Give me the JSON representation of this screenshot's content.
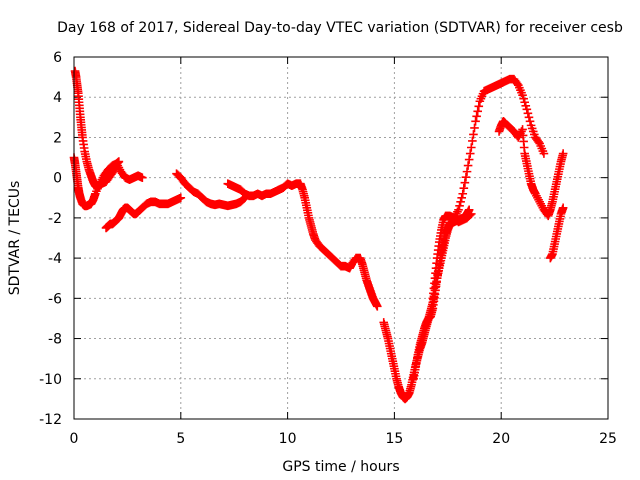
{
  "chart_data": {
    "type": "scatter",
    "title": "Day 168 of 2017, Sidereal Day-to-day VTEC variation (SDTVAR) for receiver cesb",
    "xlabel": "GPS time / hours",
    "ylabel": "SDTVAR / TECUs",
    "xlim": [
      0,
      25
    ],
    "ylim": [
      -12,
      6
    ],
    "xticks": [
      0,
      5,
      10,
      15,
      20,
      25
    ],
    "yticks": [
      -12,
      -10,
      -8,
      -6,
      -4,
      -2,
      0,
      2,
      4,
      6
    ],
    "grid": true,
    "marker": "+",
    "color": "#ff0000",
    "series": [
      {
        "x": [
          0.0,
          0.05,
          0.1,
          0.15,
          0.2,
          0.25,
          0.3,
          0.4,
          0.5,
          0.6,
          0.7,
          0.8,
          0.9,
          1.0,
          1.2,
          1.4,
          1.6,
          1.8,
          2.0,
          2.2,
          2.4,
          2.6,
          2.8,
          3.0,
          3.2
        ],
        "y": [
          1.0,
          0.7,
          0.3,
          -0.1,
          -0.5,
          -0.8,
          -1.0,
          -1.3,
          -1.4,
          -1.4,
          -1.35,
          -1.3,
          -1.1,
          -0.8,
          -0.3,
          0.1,
          0.4,
          0.6,
          0.7,
          0.3,
          0.0,
          -0.1,
          0.0,
          0.1,
          0.0
        ]
      },
      {
        "x": [
          0.05,
          0.1,
          0.15,
          0.2,
          0.25,
          0.3,
          0.35,
          0.4,
          0.5,
          0.6,
          0.7,
          0.8,
          0.9,
          1.0,
          1.1,
          1.2,
          1.3,
          1.5,
          1.7,
          1.9,
          2.0,
          2.1
        ],
        "y": [
          5.3,
          5.0,
          4.6,
          4.2,
          3.6,
          3.0,
          2.5,
          2.0,
          1.3,
          0.8,
          0.4,
          0.1,
          -0.2,
          -0.4,
          -0.5,
          -0.4,
          -0.3,
          -0.2,
          0.1,
          0.4,
          0.7,
          0.8
        ]
      },
      {
        "x": [
          1.5,
          1.6,
          1.7,
          1.8,
          1.9,
          2.0,
          2.1,
          2.2,
          2.3,
          2.4,
          2.5,
          2.6,
          2.7,
          2.8,
          2.9,
          3.0,
          3.2,
          3.4,
          3.6,
          3.8,
          4.0,
          4.2,
          4.4,
          4.6,
          4.8,
          5.0
        ],
        "y": [
          -2.5,
          -2.4,
          -2.3,
          -2.3,
          -2.2,
          -2.1,
          -2.0,
          -1.8,
          -1.6,
          -1.5,
          -1.5,
          -1.6,
          -1.7,
          -1.8,
          -1.8,
          -1.7,
          -1.5,
          -1.3,
          -1.2,
          -1.2,
          -1.3,
          -1.3,
          -1.3,
          -1.2,
          -1.1,
          -1.0
        ]
      },
      {
        "x": [
          4.8,
          5.0,
          5.2,
          5.4,
          5.6,
          5.8,
          6.0,
          6.2,
          6.4,
          6.6,
          6.8,
          7.0,
          7.2,
          7.4,
          7.6,
          7.8,
          8.0
        ],
        "y": [
          0.2,
          0.0,
          -0.3,
          -0.5,
          -0.7,
          -0.8,
          -1.0,
          -1.2,
          -1.3,
          -1.35,
          -1.3,
          -1.35,
          -1.4,
          -1.35,
          -1.3,
          -1.2,
          -1.0
        ]
      },
      {
        "x": [
          7.2,
          7.4,
          7.6,
          7.8,
          8.0,
          8.2,
          8.4,
          8.6,
          8.8,
          9.0,
          9.2,
          9.4,
          9.6,
          9.8,
          10.0,
          10.2,
          10.4,
          10.6,
          10.7,
          10.8,
          10.9,
          11.0,
          11.1,
          11.2,
          11.3,
          11.5,
          11.7,
          11.9,
          12.1,
          12.3,
          12.5,
          12.7,
          12.9,
          13.0,
          13.2,
          13.4,
          13.5,
          13.6,
          13.7,
          13.8,
          13.9,
          14.0,
          14.1,
          14.2
        ],
        "y": [
          -0.3,
          -0.4,
          -0.5,
          -0.6,
          -0.8,
          -0.9,
          -0.9,
          -0.8,
          -0.9,
          -0.8,
          -0.8,
          -0.7,
          -0.6,
          -0.5,
          -0.3,
          -0.4,
          -0.3,
          -0.3,
          -0.6,
          -1.0,
          -1.5,
          -2.0,
          -2.4,
          -2.8,
          -3.1,
          -3.4,
          -3.6,
          -3.8,
          -4.0,
          -4.2,
          -4.4,
          -4.4,
          -4.5,
          -4.3,
          -4.0,
          -4.0,
          -4.3,
          -4.7,
          -5.1,
          -5.4,
          -5.7,
          -6.0,
          -6.2,
          -6.4
        ]
      },
      {
        "x": [
          14.5,
          14.6,
          14.7,
          14.8,
          14.9,
          15.0,
          15.1,
          15.2,
          15.3,
          15.4,
          15.5,
          15.6,
          15.7,
          15.8,
          15.9,
          16.0,
          16.1,
          16.2,
          16.3,
          16.4,
          16.5,
          16.6,
          16.7,
          16.8,
          16.9,
          17.0,
          17.1,
          17.2,
          17.3,
          17.4,
          17.5,
          17.6,
          17.8,
          18.0,
          18.2,
          18.4,
          18.6,
          18.8,
          19.0,
          19.2,
          19.4,
          19.6,
          19.8,
          20.0,
          20.2,
          20.4,
          20.6,
          20.8,
          21.0,
          21.2,
          21.4,
          21.6,
          21.8,
          22.0
        ],
        "y": [
          -7.2,
          -7.6,
          -8.0,
          -8.5,
          -9.0,
          -9.5,
          -10.0,
          -10.4,
          -10.7,
          -10.9,
          -11.0,
          -10.9,
          -10.7,
          -10.3,
          -9.8,
          -9.3,
          -8.9,
          -8.5,
          -8.2,
          -7.8,
          -7.4,
          -7.0,
          -6.6,
          -6.2,
          -5.6,
          -5.0,
          -4.5,
          -4.0,
          -3.5,
          -3.0,
          -2.6,
          -2.3,
          -2.0,
          -1.6,
          -0.8,
          0.3,
          1.5,
          2.8,
          3.8,
          4.3,
          4.4,
          4.5,
          4.6,
          4.7,
          4.8,
          4.9,
          4.9,
          4.6,
          4.1,
          3.4,
          2.6,
          2.0,
          1.7,
          1.2
        ]
      },
      {
        "x": [
          15.9,
          16.0,
          16.1,
          16.2,
          16.3,
          16.4,
          16.5,
          16.6,
          16.7,
          16.8,
          16.9,
          17.0,
          17.1,
          17.2,
          17.3,
          17.4,
          17.5,
          17.6,
          17.8,
          18.0,
          18.2,
          18.4,
          18.5
        ],
        "y": [
          -10.0,
          -9.4,
          -8.8,
          -8.3,
          -7.9,
          -7.5,
          -7.2,
          -7.0,
          -6.9,
          -6.5,
          -5.8,
          -5.0,
          -4.3,
          -3.7,
          -3.2,
          -2.8,
          -2.5,
          -2.3,
          -2.2,
          -2.1,
          -2.0,
          -1.8,
          -1.6
        ]
      },
      {
        "x": [
          16.8,
          16.9,
          17.0,
          17.1,
          17.2,
          17.3,
          17.4,
          17.6,
          17.8,
          18.0,
          18.2,
          18.4,
          18.6
        ],
        "y": [
          -6.0,
          -5.0,
          -4.0,
          -3.2,
          -2.6,
          -2.1,
          -1.9,
          -1.9,
          -2.0,
          -2.2,
          -2.1,
          -2.0,
          -1.8
        ]
      },
      {
        "x": [
          19.9,
          20.0,
          20.1,
          20.2,
          20.4,
          20.6,
          20.8,
          21.0,
          21.1,
          21.2,
          21.3,
          21.4,
          21.5,
          21.6,
          21.8,
          22.0,
          22.2,
          22.3,
          22.4,
          22.5,
          22.6,
          22.7,
          22.8,
          22.9
        ],
        "y": [
          2.3,
          2.6,
          2.8,
          2.7,
          2.5,
          2.3,
          2.0,
          2.4,
          1.2,
          0.7,
          0.2,
          -0.3,
          -0.6,
          -0.8,
          -1.2,
          -1.6,
          -1.9,
          -1.6,
          -1.2,
          -0.7,
          -0.2,
          0.3,
          0.8,
          1.2
        ]
      },
      {
        "x": [
          22.3,
          22.4,
          22.5,
          22.6,
          22.7,
          22.8,
          22.9
        ],
        "y": [
          -4.0,
          -3.8,
          -3.3,
          -2.8,
          -2.3,
          -1.8,
          -1.5
        ]
      }
    ]
  }
}
